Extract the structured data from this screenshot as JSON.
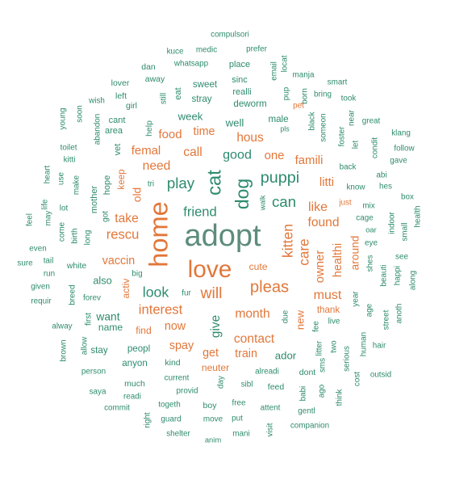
{
  "chart_data": {
    "type": "wordcloud",
    "colors": {
      "teal": "#2e8b6e",
      "orange": "#e2773a",
      "gray": "#5d8c7c"
    },
    "words": [
      {
        "text": "adopt",
        "weight": 100,
        "color": "gray"
      },
      {
        "text": "home",
        "weight": 68,
        "color": "orange"
      },
      {
        "text": "love",
        "weight": 62,
        "color": "orange"
      },
      {
        "text": "cat",
        "weight": 54,
        "color": "teal"
      },
      {
        "text": "dog",
        "weight": 52,
        "color": "teal"
      },
      {
        "text": "pleas",
        "weight": 46,
        "color": "orange"
      },
      {
        "text": "will",
        "weight": 44,
        "color": "orange"
      },
      {
        "text": "kitten",
        "weight": 40,
        "color": "orange"
      },
      {
        "text": "puppi",
        "weight": 38,
        "color": "teal"
      },
      {
        "text": "play",
        "weight": 36,
        "color": "teal"
      },
      {
        "text": "can",
        "weight": 36,
        "color": "teal"
      },
      {
        "text": "look",
        "weight": 34,
        "color": "teal"
      },
      {
        "text": "care",
        "weight": 33,
        "color": "orange"
      },
      {
        "text": "friend",
        "weight": 32,
        "color": "teal"
      },
      {
        "text": "rescu",
        "weight": 32,
        "color": "orange"
      },
      {
        "text": "interest",
        "weight": 32,
        "color": "orange"
      },
      {
        "text": "good",
        "weight": 31,
        "color": "teal"
      },
      {
        "text": "need",
        "weight": 30,
        "color": "orange"
      },
      {
        "text": "call",
        "weight": 30,
        "color": "orange"
      },
      {
        "text": "take",
        "weight": 30,
        "color": "orange"
      },
      {
        "text": "found",
        "weight": 30,
        "color": "orange"
      },
      {
        "text": "month",
        "weight": 30,
        "color": "orange"
      },
      {
        "text": "contact",
        "weight": 30,
        "color": "orange"
      },
      {
        "text": "like",
        "weight": 29,
        "color": "orange"
      },
      {
        "text": "must",
        "weight": 29,
        "color": "orange"
      },
      {
        "text": "hous",
        "weight": 28,
        "color": "orange"
      },
      {
        "text": "give",
        "weight": 28,
        "color": "teal"
      },
      {
        "text": "food",
        "weight": 27,
        "color": "orange"
      },
      {
        "text": "femal",
        "weight": 27,
        "color": "orange"
      },
      {
        "text": "one",
        "weight": 27,
        "color": "orange"
      },
      {
        "text": "famili",
        "weight": 27,
        "color": "orange"
      },
      {
        "text": "litti",
        "weight": 27,
        "color": "orange"
      },
      {
        "text": "owner",
        "weight": 27,
        "color": "orange"
      },
      {
        "text": "healthi",
        "weight": 26,
        "color": "orange"
      },
      {
        "text": "time",
        "weight": 26,
        "color": "orange"
      },
      {
        "text": "vaccin",
        "weight": 26,
        "color": "orange"
      },
      {
        "text": "spay",
        "weight": 26,
        "color": "orange"
      },
      {
        "text": "train",
        "weight": 26,
        "color": "orange"
      },
      {
        "text": "get",
        "weight": 26,
        "color": "orange"
      },
      {
        "text": "now",
        "weight": 26,
        "color": "orange"
      },
      {
        "text": "want",
        "weight": 25,
        "color": "teal"
      },
      {
        "text": "around",
        "weight": 25,
        "color": "orange"
      },
      {
        "text": "old",
        "weight": 25,
        "color": "orange"
      },
      {
        "text": "new",
        "weight": 24,
        "color": "orange"
      },
      {
        "text": "ador",
        "weight": 24,
        "color": "teal"
      },
      {
        "text": "week",
        "weight": 24,
        "color": "teal"
      },
      {
        "text": "well",
        "weight": 24,
        "color": "teal"
      },
      {
        "text": "also",
        "weight": 23,
        "color": "teal"
      },
      {
        "text": "cute",
        "weight": 22,
        "color": "orange"
      },
      {
        "text": "find",
        "weight": 22,
        "color": "orange"
      },
      {
        "text": "name",
        "weight": 22,
        "color": "teal"
      },
      {
        "text": "activ",
        "weight": 22,
        "color": "orange"
      },
      {
        "text": "neuter",
        "weight": 22,
        "color": "orange"
      },
      {
        "text": "thank",
        "weight": 21,
        "color": "orange"
      },
      {
        "text": "sweet",
        "weight": 21,
        "color": "teal"
      },
      {
        "text": "male",
        "weight": 21,
        "color": "teal"
      },
      {
        "text": "stray",
        "weight": 21,
        "color": "teal"
      },
      {
        "text": "deworm",
        "weight": 21,
        "color": "teal"
      },
      {
        "text": "keep",
        "weight": 21,
        "color": "orange"
      },
      {
        "text": "peopl",
        "weight": 21,
        "color": "teal"
      },
      {
        "text": "anyon",
        "weight": 21,
        "color": "teal"
      },
      {
        "text": "stay",
        "weight": 21,
        "color": "teal"
      },
      {
        "text": "hope",
        "weight": 20,
        "color": "teal"
      },
      {
        "text": "mother",
        "weight": 20,
        "color": "teal"
      },
      {
        "text": "vet",
        "weight": 20,
        "color": "teal"
      },
      {
        "text": "sinc",
        "weight": 20,
        "color": "teal"
      },
      {
        "text": "realli",
        "weight": 20,
        "color": "teal"
      },
      {
        "text": "place",
        "weight": 20,
        "color": "teal"
      },
      {
        "text": "eat",
        "weight": 20,
        "color": "teal"
      },
      {
        "text": "cant",
        "weight": 20,
        "color": "teal"
      },
      {
        "text": "area",
        "weight": 20,
        "color": "teal"
      },
      {
        "text": "lover",
        "weight": 19,
        "color": "teal"
      },
      {
        "text": "away",
        "weight": 19,
        "color": "teal"
      },
      {
        "text": "dan",
        "weight": 19,
        "color": "teal"
      },
      {
        "text": "left",
        "weight": 19,
        "color": "teal"
      },
      {
        "text": "girl",
        "weight": 19,
        "color": "teal"
      },
      {
        "text": "still",
        "weight": 18,
        "color": "teal"
      },
      {
        "text": "help",
        "weight": 19,
        "color": "teal"
      },
      {
        "text": "whatsapp",
        "weight": 18,
        "color": "teal"
      },
      {
        "text": "medic",
        "weight": 18,
        "color": "teal"
      },
      {
        "text": "kuce",
        "weight": 18,
        "color": "teal"
      },
      {
        "text": "prefer",
        "weight": 18,
        "color": "teal"
      },
      {
        "text": "compulsori",
        "weight": 18,
        "color": "teal"
      },
      {
        "text": "email",
        "weight": 18,
        "color": "teal"
      },
      {
        "text": "locat",
        "weight": 18,
        "color": "teal"
      },
      {
        "text": "manja",
        "weight": 18,
        "color": "teal"
      },
      {
        "text": "smart",
        "weight": 18,
        "color": "teal"
      },
      {
        "text": "pup",
        "weight": 18,
        "color": "teal"
      },
      {
        "text": "born",
        "weight": 18,
        "color": "teal"
      },
      {
        "text": "bring",
        "weight": 18,
        "color": "teal"
      },
      {
        "text": "took",
        "weight": 18,
        "color": "teal"
      },
      {
        "text": "wish",
        "weight": 18,
        "color": "teal"
      },
      {
        "text": "soon",
        "weight": 18,
        "color": "teal"
      },
      {
        "text": "young",
        "weight": 18,
        "color": "teal"
      },
      {
        "text": "abandon",
        "weight": 18,
        "color": "teal"
      },
      {
        "text": "toilet",
        "weight": 18,
        "color": "teal"
      },
      {
        "text": "kitti",
        "weight": 18,
        "color": "teal"
      },
      {
        "text": "heart",
        "weight": 18,
        "color": "teal"
      },
      {
        "text": "use",
        "weight": 18,
        "color": "teal"
      },
      {
        "text": "make",
        "weight": 18,
        "color": "teal"
      },
      {
        "text": "got",
        "weight": 18,
        "color": "teal"
      },
      {
        "text": "tri",
        "weight": 18,
        "color": "teal"
      },
      {
        "text": "life",
        "weight": 18,
        "color": "teal"
      },
      {
        "text": "may",
        "weight": 18,
        "color": "teal"
      },
      {
        "text": "lot",
        "weight": 18,
        "color": "teal"
      },
      {
        "text": "feel",
        "weight": 18,
        "color": "teal"
      },
      {
        "text": "come",
        "weight": 18,
        "color": "teal"
      },
      {
        "text": "birth",
        "weight": 18,
        "color": "teal"
      },
      {
        "text": "long",
        "weight": 18,
        "color": "teal"
      },
      {
        "text": "even",
        "weight": 18,
        "color": "teal"
      },
      {
        "text": "sure",
        "weight": 18,
        "color": "teal"
      },
      {
        "text": "tail",
        "weight": 18,
        "color": "teal"
      },
      {
        "text": "white",
        "weight": 19,
        "color": "teal"
      },
      {
        "text": "run",
        "weight": 18,
        "color": "teal"
      },
      {
        "text": "given",
        "weight": 18,
        "color": "teal"
      },
      {
        "text": "big",
        "weight": 18,
        "color": "teal"
      },
      {
        "text": "fur",
        "weight": 18,
        "color": "teal"
      },
      {
        "text": "breed",
        "weight": 18,
        "color": "teal"
      },
      {
        "text": "requir",
        "weight": 18,
        "color": "teal"
      },
      {
        "text": "forev",
        "weight": 18,
        "color": "teal"
      },
      {
        "text": "alway",
        "weight": 18,
        "color": "teal"
      },
      {
        "text": "first",
        "weight": 18,
        "color": "teal"
      },
      {
        "text": "allow",
        "weight": 18,
        "color": "teal"
      },
      {
        "text": "brown",
        "weight": 18,
        "color": "teal"
      },
      {
        "text": "person",
        "weight": 18,
        "color": "teal"
      },
      {
        "text": "kind",
        "weight": 19,
        "color": "teal"
      },
      {
        "text": "much",
        "weight": 19,
        "color": "teal"
      },
      {
        "text": "current",
        "weight": 18,
        "color": "teal"
      },
      {
        "text": "saya",
        "weight": 18,
        "color": "teal"
      },
      {
        "text": "readi",
        "weight": 18,
        "color": "teal"
      },
      {
        "text": "provid",
        "weight": 18,
        "color": "teal"
      },
      {
        "text": "commit",
        "weight": 18,
        "color": "teal"
      },
      {
        "text": "togeth",
        "weight": 18,
        "color": "teal"
      },
      {
        "text": "boy",
        "weight": 19,
        "color": "teal"
      },
      {
        "text": "right",
        "weight": 18,
        "color": "teal"
      },
      {
        "text": "guard",
        "weight": 18,
        "color": "teal"
      },
      {
        "text": "move",
        "weight": 18,
        "color": "teal"
      },
      {
        "text": "shelter",
        "weight": 18,
        "color": "teal"
      },
      {
        "text": "anim",
        "weight": 17,
        "color": "teal"
      },
      {
        "text": "mani",
        "weight": 18,
        "color": "teal"
      },
      {
        "text": "put",
        "weight": 18,
        "color": "teal"
      },
      {
        "text": "free",
        "weight": 18,
        "color": "teal"
      },
      {
        "text": "sibl",
        "weight": 18,
        "color": "teal"
      },
      {
        "text": "attent",
        "weight": 18,
        "color": "teal"
      },
      {
        "text": "visit",
        "weight": 18,
        "color": "teal"
      },
      {
        "text": "companion",
        "weight": 18,
        "color": "teal"
      },
      {
        "text": "feed",
        "weight": 19,
        "color": "teal"
      },
      {
        "text": "day",
        "weight": 18,
        "color": "teal"
      },
      {
        "text": "alreadi",
        "weight": 18,
        "color": "teal"
      },
      {
        "text": "dont",
        "weight": 19,
        "color": "teal"
      },
      {
        "text": "babi",
        "weight": 18,
        "color": "teal"
      },
      {
        "text": "gentl",
        "weight": 18,
        "color": "teal"
      },
      {
        "text": "ago",
        "weight": 18,
        "color": "teal"
      },
      {
        "text": "due",
        "weight": 18,
        "color": "teal"
      },
      {
        "text": "sms",
        "weight": 18,
        "color": "teal"
      },
      {
        "text": "two",
        "weight": 18,
        "color": "teal"
      },
      {
        "text": "litter",
        "weight": 18,
        "color": "teal"
      },
      {
        "text": "fee",
        "weight": 18,
        "color": "teal"
      },
      {
        "text": "live",
        "weight": 18,
        "color": "teal"
      },
      {
        "text": "serious",
        "weight": 18,
        "color": "teal"
      },
      {
        "text": "think",
        "weight": 18,
        "color": "teal"
      },
      {
        "text": "cost",
        "weight": 18,
        "color": "teal"
      },
      {
        "text": "outsid",
        "weight": 18,
        "color": "teal"
      },
      {
        "text": "human",
        "weight": 18,
        "color": "teal"
      },
      {
        "text": "hair",
        "weight": 18,
        "color": "teal"
      },
      {
        "text": "age",
        "weight": 18,
        "color": "teal"
      },
      {
        "text": "street",
        "weight": 18,
        "color": "teal"
      },
      {
        "text": "anoth",
        "weight": 18,
        "color": "teal"
      },
      {
        "text": "year",
        "weight": 18,
        "color": "teal"
      },
      {
        "text": "beauti",
        "weight": 18,
        "color": "teal"
      },
      {
        "text": "happi",
        "weight": 18,
        "color": "teal"
      },
      {
        "text": "along",
        "weight": 18,
        "color": "teal"
      },
      {
        "text": "see",
        "weight": 18,
        "color": "teal"
      },
      {
        "text": "shes",
        "weight": 18,
        "color": "teal"
      },
      {
        "text": "eye",
        "weight": 18,
        "color": "teal"
      },
      {
        "text": "cage",
        "weight": 18,
        "color": "teal"
      },
      {
        "text": "mix",
        "weight": 18,
        "color": "teal"
      },
      {
        "text": "indoor",
        "weight": 18,
        "color": "teal"
      },
      {
        "text": "small",
        "weight": 18,
        "color": "teal"
      },
      {
        "text": "health",
        "weight": 18,
        "color": "teal"
      },
      {
        "text": "box",
        "weight": 18,
        "color": "teal"
      },
      {
        "text": "hes",
        "weight": 18,
        "color": "teal"
      },
      {
        "text": "abi",
        "weight": 18,
        "color": "teal"
      },
      {
        "text": "gave",
        "weight": 18,
        "color": "teal"
      },
      {
        "text": "follow",
        "weight": 18,
        "color": "teal"
      },
      {
        "text": "klang",
        "weight": 18,
        "color": "teal"
      },
      {
        "text": "great",
        "weight": 18,
        "color": "teal"
      },
      {
        "text": "condit",
        "weight": 18,
        "color": "teal"
      },
      {
        "text": "let",
        "weight": 18,
        "color": "teal"
      },
      {
        "text": "near",
        "weight": 18,
        "color": "teal"
      },
      {
        "text": "foster",
        "weight": 18,
        "color": "teal"
      },
      {
        "text": "someon",
        "weight": 18,
        "color": "teal"
      },
      {
        "text": "black",
        "weight": 18,
        "color": "teal"
      },
      {
        "text": "back",
        "weight": 18,
        "color": "teal"
      },
      {
        "text": "know",
        "weight": 18,
        "color": "teal"
      },
      {
        "text": "just",
        "weight": 18,
        "color": "orange"
      },
      {
        "text": "walk",
        "weight": 17,
        "color": "teal"
      },
      {
        "text": "pet",
        "weight": 18,
        "color": "orange"
      },
      {
        "text": "pls",
        "weight": 16,
        "color": "teal"
      },
      {
        "text": "oar",
        "weight": 17,
        "color": "teal"
      }
    ]
  }
}
